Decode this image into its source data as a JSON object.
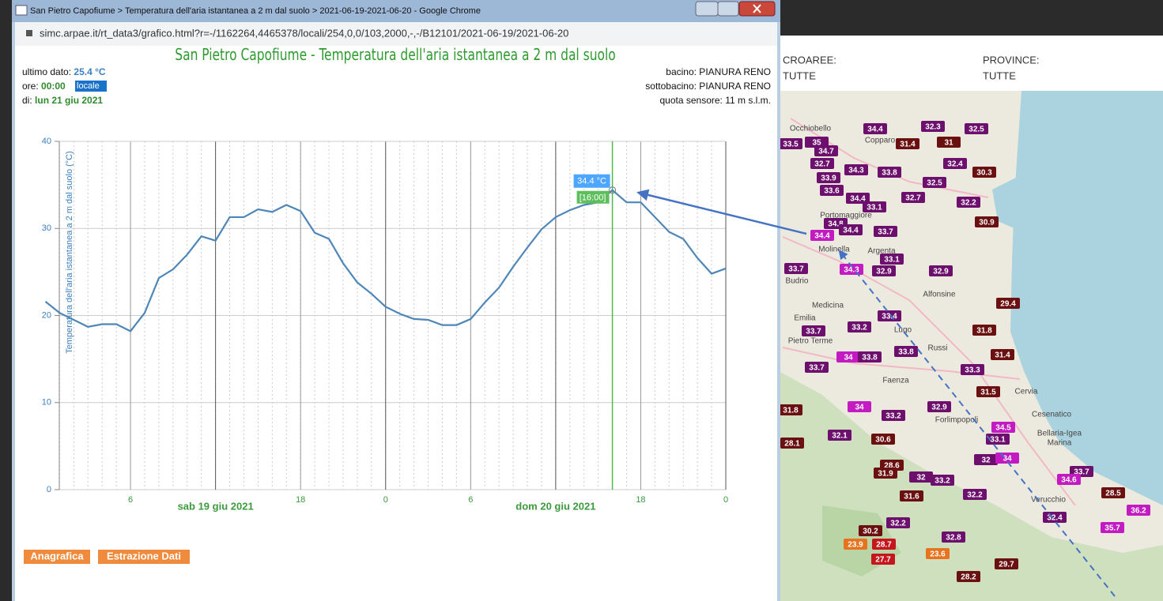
{
  "window": {
    "title": "San Pietro Capofiume > Temperatura dell'aria istantanea a 2 m dal suolo > 2021-06-19-2021-06-20 - Google Chrome",
    "url": "simc.arpae.it/rt_data3/grafico.html?r=-/1162264,4465378/locali/254,0,0/103,2000,-,-/B12101/2021-06-19/2021-06-20"
  },
  "info": {
    "last_label": "ultimo dato:",
    "last_value": "25.4 °C",
    "time_label": "ore:",
    "time_value": "00:00",
    "time_zone": "locale",
    "date_label": "di:",
    "date_value": "lun 21 giu 2021",
    "basin": "bacino: PIANURA RENO",
    "subbasin": "sottobacino: PIANURA RENO",
    "altitude": "quota sensore: 11 m s.l.m."
  },
  "chart_data": {
    "type": "line",
    "title": "San Pietro Capofiume - Temperatura dell'aria istantanea a 2 m dal suolo",
    "y_label": "Temperatura dell'aria istantanea a 2 m dal suolo (°C)",
    "x": [
      0,
      1,
      2,
      3,
      4,
      5,
      6,
      7,
      8,
      9,
      10,
      11,
      12,
      13,
      14,
      15,
      16,
      17,
      18,
      19,
      20,
      21,
      22,
      23,
      24,
      25,
      26,
      27,
      28,
      29,
      30,
      31,
      32,
      33,
      34,
      35,
      36,
      37,
      38,
      39,
      40,
      41,
      42,
      43,
      44,
      45,
      46,
      47,
      48
    ],
    "series": [
      {
        "color": "#4e86b8",
        "values": [
          21.6,
          20.3,
          19.5,
          18.7,
          19.0,
          19.0,
          18.2,
          20.3,
          24.3,
          25.3,
          27.0,
          29.1,
          28.6,
          31.3,
          31.3,
          32.2,
          31.9,
          32.7,
          32.0,
          29.5,
          28.8,
          26.0,
          23.8,
          22.5,
          21.0,
          20.2,
          19.6,
          19.5,
          18.9,
          18.9,
          19.6,
          21.5,
          23.2,
          25.6,
          27.8,
          29.9,
          31.3,
          32.1,
          32.7,
          33.0,
          34.4,
          33.0,
          33.0,
          31.3,
          29.6,
          28.8,
          26.6,
          24.8,
          25.4
        ]
      }
    ],
    "xlim": [
      0,
      48
    ],
    "xticks": [
      6,
      18,
      {
        "value": 24,
        "label": "0"
      },
      {
        "value": 30,
        "label": "6"
      },
      {
        "value": 42,
        "label": "18"
      },
      {
        "value": 48,
        "label": "0"
      }
    ],
    "date_labels": [
      {
        "value": 12,
        "label": "sab 19 giu 2021"
      },
      {
        "value": 36,
        "label": "dom 20 giu 2021"
      }
    ],
    "ylim": [
      0,
      40
    ],
    "yticks": [
      0,
      10,
      20,
      30,
      40
    ],
    "grid": true,
    "highlight": {
      "x": 40,
      "value_label": "34.4 °C",
      "time_label": "[16:00]"
    }
  },
  "buttons": [
    "Anagrafica",
    "Estrazione Dati"
  ],
  "map": {
    "headers": [
      "CROAREE:",
      "TUTTE",
      "PROVINCE:",
      "TUTTE"
    ],
    "stations": [
      34.4,
      32.3,
      32.5,
      33.5,
      35,
      34.7,
      31.4,
      31,
      32.7,
      34.3,
      33.8,
      32.4,
      30.3,
      33.9,
      32.5,
      33.6,
      34.4,
      32.7,
      32.2,
      33.1,
      34.8,
      30.9,
      34.4,
      33.7,
      34.4,
      33.1,
      33.7,
      34.3,
      32.9,
      32.9,
      29.4,
      33.4,
      33.2,
      33.7,
      31.8,
      33.8,
      34,
      33.8,
      31.4,
      33.7,
      33.3,
      31.5,
      34,
      32.9,
      31.8,
      33.2,
      34.5,
      32.1,
      30.6,
      33.1,
      28.1,
      32,
      34,
      28.6,
      31.9,
      33.7,
      32,
      33.2,
      34.6,
      28.5,
      31.6,
      32.2,
      36.2,
      32.4,
      32.2,
      30.2,
      35.7,
      32.8,
      23.9,
      28.7,
      23.6,
      27.7,
      29.7,
      28.2
    ],
    "places": [
      "Occhiobello",
      "Copparo",
      "Portomaggiore",
      "Molinella",
      "Argenta",
      "Budrio",
      "Alfonsine",
      "Medicina",
      "Emilia",
      "Lugo",
      "Pietro Terme",
      "Russi",
      "Faenza",
      "Cervia",
      "Forlimpopoli",
      "Cesenatico",
      "Bellaria-Igea",
      "Marina",
      "Verucchio"
    ]
  }
}
